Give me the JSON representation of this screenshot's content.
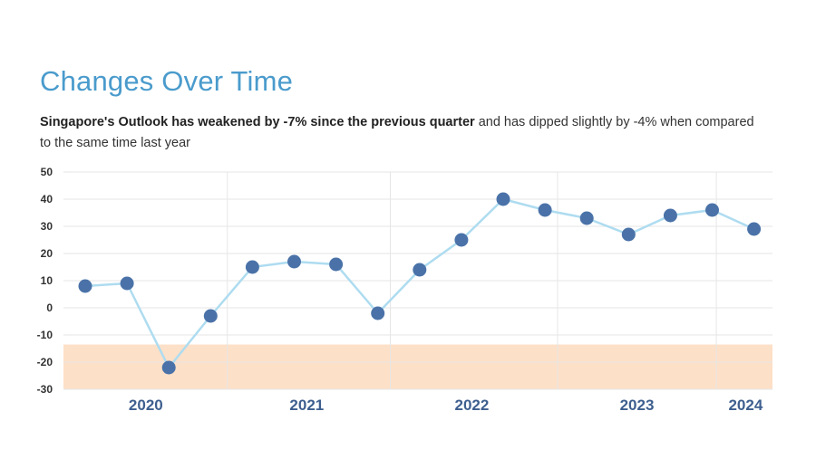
{
  "header": {
    "title": "Changes Over Time",
    "subtitle": {
      "bold": "Singapore's Outlook has weakened by -7% since the previous quarter",
      "rest": " and has dipped slightly by -4% when compared to the same time last year"
    }
  },
  "colors": {
    "title": "#4a9bcc",
    "line": "#aedcf0",
    "marker": "#4a72a8",
    "band": "#fde0c8",
    "grid": "#e6e6e6",
    "year_label": "#3e5f8f"
  },
  "chart_data": {
    "type": "line",
    "ylim": [
      -30,
      50
    ],
    "yticks": [
      50,
      40,
      30,
      20,
      10,
      0,
      -10,
      -20,
      -30
    ],
    "negative_band": [
      -30,
      -13.5
    ],
    "years": [
      "2020",
      "2021",
      "2022",
      "2023",
      "2024"
    ],
    "series": [
      {
        "values": [
          8,
          9,
          -22,
          -3,
          15,
          17,
          16,
          -2,
          14,
          25,
          40,
          36,
          33,
          27,
          34,
          36,
          29
        ]
      }
    ]
  }
}
